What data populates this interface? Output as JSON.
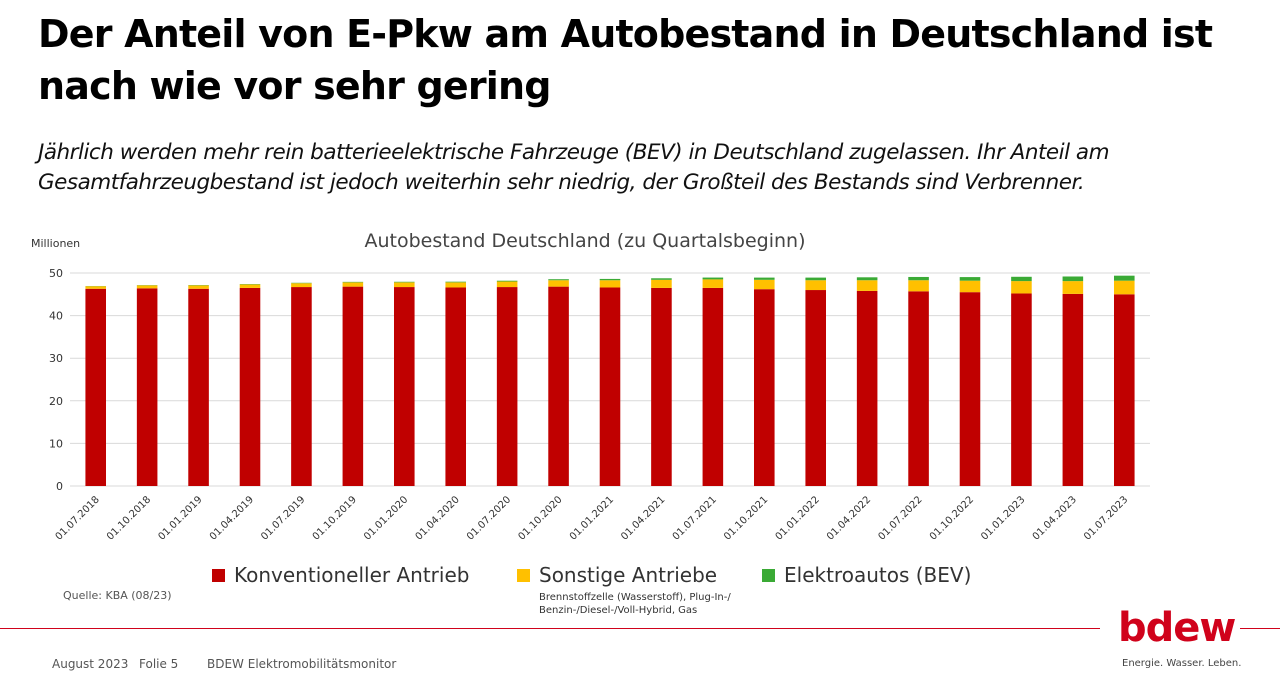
{
  "slide": {
    "title": "Der Anteil von E-Pkw am Autobestand in Deutschland ist nach wie vor sehr gering",
    "subtitle": "Jährlich werden mehr rein batterieelektrische Fahrzeuge (BEV) in Deutschland zugelassen. Ihr Anteil am Gesamtfahrzeugbestand ist jedoch weiterhin sehr niedrig, der Großteil des Bestands sind Verbrenner.",
    "source": "Quelle: KBA (08/23)",
    "legend_note": "Brennstoffzelle (Wasserstoff), Plug-In-/ Benzin-/Diesel-/Voll-Hybrid, Gas",
    "footer": {
      "date": "August 2023",
      "slide_no": "Folie 5",
      "report": "BDEW Elektromobilitätsmonitor"
    },
    "logo": {
      "wordmark": "bdew",
      "tagline": "Energie. Wasser. Leben.",
      "color": "#d0021b"
    }
  },
  "chart_data": {
    "type": "bar",
    "stacked": true,
    "title": "Autobestand Deutschland (zu Quartalsbeginn)",
    "ylabel": "Millionen",
    "xlabel": "",
    "ylim": [
      0,
      50
    ],
    "yticks": [
      0,
      10,
      20,
      30,
      40,
      50
    ],
    "grid": true,
    "legend_position": "bottom",
    "categories": [
      "01.07.2018",
      "01.10.2018",
      "01.01.2019",
      "01.04.2019",
      "01.07.2019",
      "01.10.2019",
      "01.01.2020",
      "01.04.2020",
      "01.07.2020",
      "01.10.2020",
      "01.01.2021",
      "01.04.2021",
      "01.07.2021",
      "01.10.2021",
      "01.01.2022",
      "01.04.2022",
      "01.07.2022",
      "01.10.2022",
      "01.01.2023",
      "01.04.2023",
      "01.07.2023"
    ],
    "series": [
      {
        "name": "Konventioneller Antrieb",
        "color": "#c00000",
        "values": [
          46.3,
          46.4,
          46.3,
          46.5,
          46.7,
          46.8,
          46.7,
          46.6,
          46.7,
          46.8,
          46.6,
          46.5,
          46.5,
          46.2,
          46.0,
          45.8,
          45.7,
          45.5,
          45.2,
          45.1,
          45.0
        ]
      },
      {
        "name": "Sonstige Antriebe",
        "color": "#ffc000",
        "values": [
          0.6,
          0.7,
          0.8,
          0.8,
          0.9,
          1.0,
          1.1,
          1.2,
          1.3,
          1.5,
          1.7,
          1.9,
          2.0,
          2.2,
          2.3,
          2.5,
          2.6,
          2.7,
          2.9,
          3.0,
          3.2
        ]
      },
      {
        "name": "Elektroautos (BEV)",
        "color": "#3aaa35",
        "values": [
          0.05,
          0.06,
          0.08,
          0.09,
          0.1,
          0.12,
          0.14,
          0.16,
          0.19,
          0.24,
          0.31,
          0.36,
          0.43,
          0.52,
          0.62,
          0.69,
          0.77,
          0.84,
          1.01,
          1.08,
          1.17
        ]
      }
    ]
  }
}
